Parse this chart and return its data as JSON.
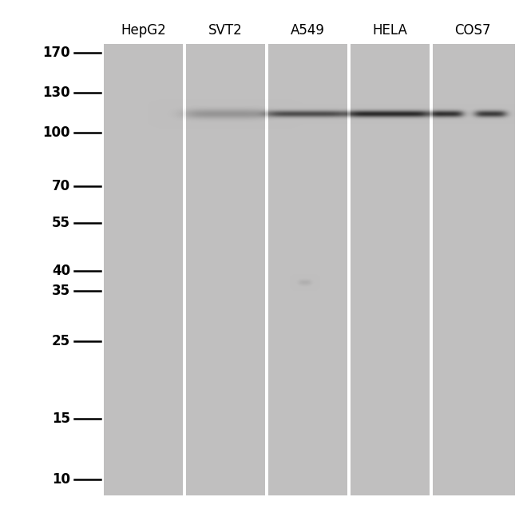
{
  "background_color": "#ffffff",
  "gel_bg_color": "#c0bfbf",
  "lane_labels": [
    "HepG2",
    "SVT2",
    "A549",
    "HELA",
    "COS7"
  ],
  "mw_markers": [
    170,
    130,
    100,
    70,
    55,
    40,
    35,
    25,
    15,
    10
  ],
  "fig_width": 6.5,
  "fig_height": 6.32,
  "label_fontsize": 12,
  "marker_fontsize": 12,
  "band_kd": 113,
  "gel_bg_rgb": [
    192,
    191,
    191
  ]
}
